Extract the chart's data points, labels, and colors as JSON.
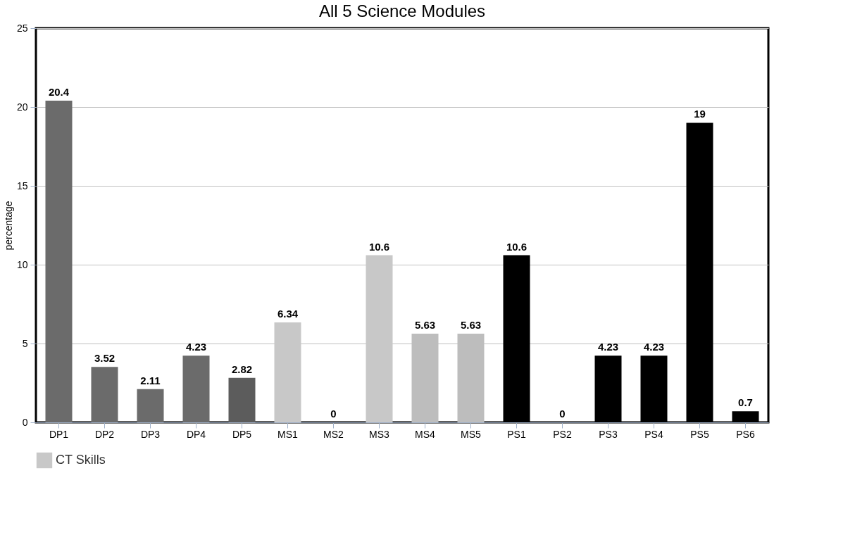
{
  "chart_data": {
    "type": "bar",
    "title": "All 5 Science Modules",
    "ylabel": "percentage",
    "categories": [
      "DP1",
      "DP2",
      "DP3",
      "DP4",
      "DP5",
      "MS1",
      "MS2",
      "MS3",
      "MS4",
      "MS5",
      "PS1",
      "PS2",
      "PS3",
      "PS4",
      "PS5",
      "PS6"
    ],
    "series": [
      {
        "name": "CT Skills",
        "color": "#c8c8c8",
        "colors": [
          "#6b6b6b",
          "#6b6b6b",
          "#6b6b6b",
          "#6b6b6b",
          "#5c5c5c",
          "#c8c8c8",
          "#c8c8c8",
          "#c8c8c8",
          "#bdbdbd",
          "#bdbdbd",
          "#000000",
          "#000000",
          "#000000",
          "#000000",
          "#000000",
          "#000000"
        ],
        "values": [
          20.4,
          3.52,
          2.11,
          4.23,
          2.82,
          6.34,
          0,
          10.6,
          5.63,
          5.63,
          10.6,
          0,
          4.23,
          4.23,
          19,
          0.7
        ]
      }
    ],
    "ylim": [
      0,
      25
    ],
    "yticks": [
      0,
      5,
      10,
      15,
      20,
      25
    ],
    "grid": "y",
    "data_labels": true,
    "legend": "bottom"
  }
}
